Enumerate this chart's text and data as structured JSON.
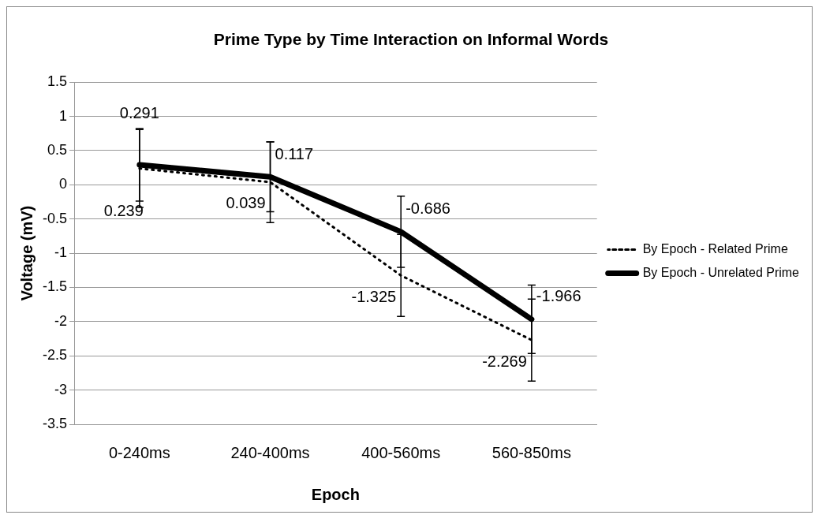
{
  "chart_data": {
    "type": "line",
    "title": "Prime Type by Time Interaction on Informal Words",
    "xlabel": "Epoch",
    "ylabel": "Voltage (mV)",
    "categories": [
      "0-240ms",
      "240-400ms",
      "400-560ms",
      "560-850ms"
    ],
    "series": [
      {
        "name": "By Epoch - Related Prime",
        "color": "#000000",
        "line_style": "dotted",
        "values": [
          0.239,
          0.039,
          -1.325,
          -2.269
        ],
        "errors": [
          0.57,
          0.59,
          0.6,
          0.6
        ]
      },
      {
        "name": "By Epoch - Unrelated Prime",
        "color": "#000000",
        "line_style": "solid",
        "values": [
          0.291,
          0.117,
          -0.686,
          -1.966
        ],
        "errors": [
          0.53,
          0.51,
          0.52,
          0.5
        ]
      }
    ],
    "ylim": [
      -3.5,
      1.5
    ],
    "yticks": [
      -3.5,
      -3,
      -2.5,
      -2,
      -1.5,
      -1,
      -0.5,
      0,
      0.5,
      1,
      1.5
    ],
    "grid": "y",
    "legend": "right",
    "marker": "none",
    "data_labels": true
  }
}
